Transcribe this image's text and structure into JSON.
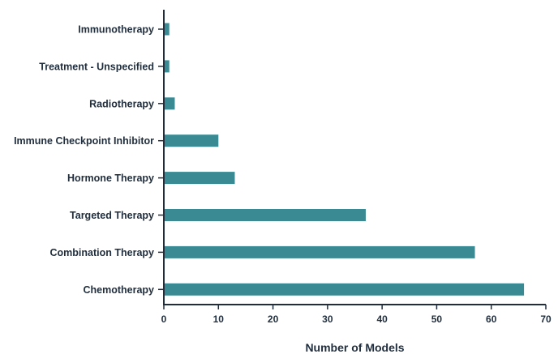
{
  "chart_data": {
    "type": "bar",
    "orientation": "horizontal",
    "categories": [
      "Immunotherapy",
      "Treatment - Unspecified",
      "Radiotherapy",
      "Immune Checkpoint Inhibitor",
      "Hormone Therapy",
      "Targeted Therapy",
      "Combination Therapy",
      "Chemotherapy"
    ],
    "values": [
      1,
      1,
      2,
      10,
      13,
      37,
      57,
      66
    ],
    "xlabel": "Number of Models",
    "ylabel": "",
    "xlim": [
      0,
      70
    ],
    "xticks": [
      "0",
      "10",
      "20",
      "30",
      "40",
      "50",
      "60",
      "70"
    ],
    "grid": false,
    "bar_color": "#3a8a93",
    "axis_color": "#1f2d3d"
  }
}
